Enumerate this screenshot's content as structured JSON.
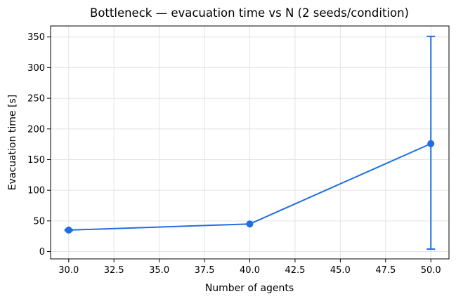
{
  "chart_data": {
    "type": "line",
    "title": "Bottleneck — evacuation time vs N  (2 seeds/condition)",
    "xlabel": "Number of agents",
    "ylabel": "Evacuation time [s]",
    "xlim": [
      29.0,
      51.0
    ],
    "ylim": [
      -12,
      368
    ],
    "x_ticks": [
      30.0,
      32.5,
      35.0,
      37.5,
      40.0,
      42.5,
      45.0,
      47.5,
      50.0
    ],
    "x_tick_labels": [
      "30.0",
      "32.5",
      "35.0",
      "37.5",
      "40.0",
      "42.5",
      "45.0",
      "47.5",
      "50.0"
    ],
    "y_ticks": [
      0,
      50,
      100,
      150,
      200,
      250,
      300,
      350
    ],
    "y_tick_labels": [
      "0",
      "50",
      "100",
      "150",
      "200",
      "250",
      "300",
      "350"
    ],
    "grid": true,
    "series": [
      {
        "x": [
          30,
          40,
          50
        ],
        "y": [
          35,
          45,
          176
        ],
        "yerr_low": [
          34,
          45,
          4
        ],
        "yerr_high": [
          36,
          45,
          351
        ],
        "color": "#1f6fe0"
      }
    ]
  }
}
